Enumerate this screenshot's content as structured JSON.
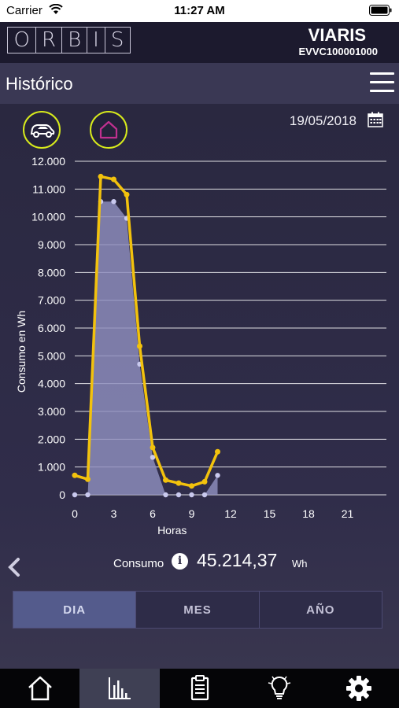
{
  "status": {
    "carrier": "Carrier",
    "time": "11:27 AM"
  },
  "brand": {
    "logo_letters": [
      "O",
      "R",
      "B",
      "I",
      "S"
    ],
    "device_name": "VIARIS",
    "device_serial": "EVVC100001000"
  },
  "header": {
    "title": "Histórico"
  },
  "filters": {
    "modes": [
      {
        "icon": "car-icon"
      },
      {
        "icon": "home-icon"
      }
    ],
    "date": "19/05/2018"
  },
  "chart_data": {
    "type": "line",
    "ylabel": "Consumo en Wh",
    "xlabel": "Horas",
    "ylim": [
      0,
      12000
    ],
    "xlim": [
      0,
      24
    ],
    "y_ticks": [
      "0",
      "1.000",
      "2.000",
      "3.000",
      "4.000",
      "5.000",
      "6.000",
      "7.000",
      "8.000",
      "9.000",
      "10.000",
      "11.000",
      "12.000"
    ],
    "x_ticks": [
      "0",
      "3",
      "6",
      "9",
      "12",
      "15",
      "18",
      "21"
    ],
    "grid": true,
    "colors": {
      "line": "#f2c20d",
      "area": "#8f8fbe",
      "points": "#c9c9ee"
    },
    "series": [
      {
        "type": "line",
        "x": [
          0,
          1,
          2,
          3,
          4,
          5,
          6,
          7,
          8,
          9,
          10,
          11
        ],
        "y": [
          700,
          560,
          11450,
          11350,
          10800,
          5350,
          1700,
          530,
          420,
          320,
          470,
          1550
        ]
      },
      {
        "type": "area",
        "x": [
          0,
          1,
          2,
          3,
          4,
          5,
          6,
          7,
          8,
          9,
          10,
          11
        ],
        "y": [
          0,
          0,
          10550,
          10550,
          9950,
          4700,
          1350,
          0,
          0,
          0,
          0,
          700
        ]
      }
    ]
  },
  "summary": {
    "label": "Consumo",
    "value": "45.214,37",
    "unit": "Wh"
  },
  "periods": [
    {
      "label": "DIA",
      "active": true
    },
    {
      "label": "MES",
      "active": false
    },
    {
      "label": "AÑO",
      "active": false
    }
  ],
  "tabbar": {
    "items": [
      {
        "icon": "home-icon",
        "active": false
      },
      {
        "icon": "chart-icon",
        "active": true
      },
      {
        "icon": "clipboard-icon",
        "active": false
      },
      {
        "icon": "lightbulb-icon",
        "active": false
      },
      {
        "icon": "gear-icon",
        "active": false
      }
    ]
  }
}
